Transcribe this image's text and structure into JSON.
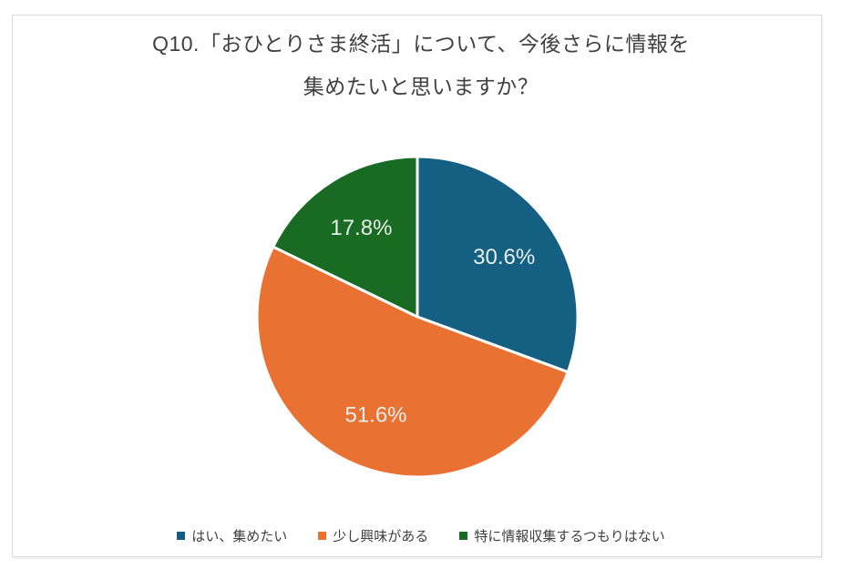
{
  "frame": {
    "background": "#ffffff",
    "border_color": "#d9d9d9"
  },
  "chart_data": {
    "type": "pie",
    "title": "Q10.「おひとりさま終活」について、今後さらに情報を集めたいと思いますか？",
    "title_lines": [
      "Q10.「おひとりさま終活」について、今後さらに情報を",
      "集めたいと思いますか？"
    ],
    "categories": [
      "はい、集めたい",
      "少し興味がある",
      "特に情報収集するつもりはない"
    ],
    "values": [
      30.6,
      51.6,
      17.8
    ],
    "data_labels": [
      "30.6%",
      "51.6%",
      "17.8%"
    ],
    "unit": "%",
    "colors": [
      "#156082",
      "#e97132",
      "#196b24"
    ],
    "start_angle_deg": 0,
    "direction": "clockwise",
    "legend_position": "bottom",
    "label_color": "#e6efeb",
    "title_color": "#404040",
    "legend_text_color": "#404040",
    "slice_separator_color": "#ffffff"
  }
}
